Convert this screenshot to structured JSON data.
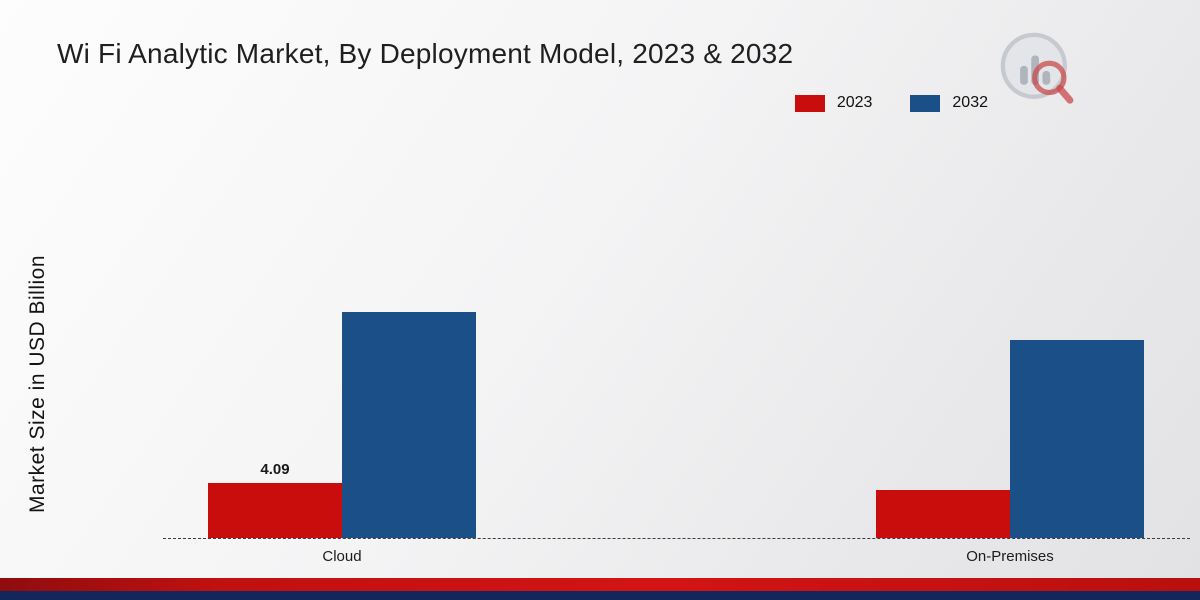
{
  "page": {
    "title": "Wi Fi Analytic Market, By Deployment Model, 2023 & 2032"
  },
  "legend": {
    "items": [
      {
        "label": "2023",
        "color": "#c90d0d"
      },
      {
        "label": "2032",
        "color": "#1b4f87"
      }
    ],
    "position": "top-right"
  },
  "chart_data": {
    "type": "bar",
    "title": "Wi Fi Analytic Market, By Deployment Model, 2023 & 2032",
    "ylabel": "Market Size in USD Billion",
    "xlabel": "",
    "categories": [
      "Cloud",
      "On-Premises"
    ],
    "series": [
      {
        "name": "2023",
        "color": "#c90d0d",
        "values": [
          4.09,
          3.6
        ]
      },
      {
        "name": "2032",
        "color": "#1b4f87",
        "values": [
          16.8,
          14.7
        ]
      }
    ],
    "annotations": [
      {
        "series": "2023",
        "category": "Cloud",
        "text": "4.09"
      }
    ],
    "ylim": [
      0,
      20
    ],
    "grid": false,
    "axis_style": "dashed-baseline",
    "legend_position": "top-right"
  },
  "icons": {
    "brand_logo": "bar-chart-magnifier-logo"
  }
}
